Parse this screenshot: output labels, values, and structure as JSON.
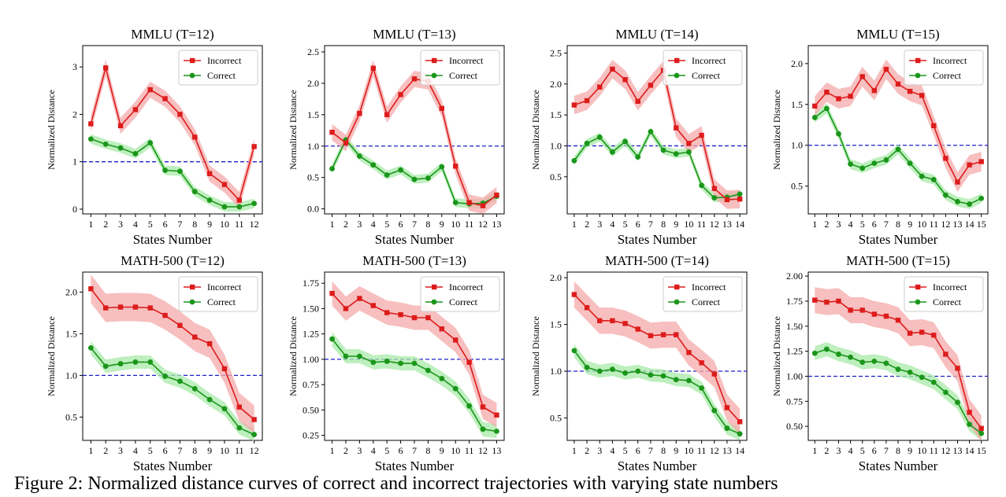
{
  "caption": "Figure 2: Normalized distance curves of correct and incorrect trajectories with varying state numbers",
  "colors": {
    "incorrect": "#dd1c1c",
    "incorrect_band": "#f4a9a9",
    "correct": "#1a961a",
    "correct_band": "#a8eaa8",
    "reference": "#1f1fc8"
  },
  "chart_data": [
    {
      "type": "line",
      "title": "MMLU (T=12)",
      "xlabel": "States Number",
      "ylabel": "Normalized Distance",
      "x": [
        1,
        2,
        3,
        4,
        5,
        6,
        7,
        8,
        9,
        10,
        11,
        12
      ],
      "ylim": [
        -0.1,
        3.45
      ],
      "yticks": [
        "0",
        "1",
        "2",
        "3"
      ],
      "reference_line": 1.0,
      "legend": "top-right",
      "series": [
        {
          "name": "Incorrect",
          "values": [
            1.8,
            2.98,
            1.76,
            2.1,
            2.52,
            2.33,
            2.0,
            1.52,
            0.75,
            0.52,
            0.19,
            1.32
          ],
          "band": 0.17
        },
        {
          "name": "Correct",
          "values": [
            1.48,
            1.37,
            1.29,
            1.17,
            1.4,
            0.82,
            0.8,
            0.37,
            0.19,
            0.05,
            0.05,
            0.12
          ],
          "band": 0.1
        }
      ]
    },
    {
      "type": "line",
      "title": "MMLU (T=13)",
      "xlabel": "States Number",
      "ylabel": "Normalized Distance",
      "x": [
        1,
        2,
        3,
        4,
        5,
        6,
        7,
        8,
        9,
        10,
        11,
        12,
        13
      ],
      "ylim": [
        -0.08,
        2.6
      ],
      "yticks": [
        "0.0",
        "0.5",
        "1.0",
        "1.5",
        "2.0",
        "2.5"
      ],
      "reference_line": 1.0,
      "legend": "top-right",
      "series": [
        {
          "name": "Incorrect",
          "values": [
            1.22,
            1.05,
            1.52,
            2.24,
            1.5,
            1.82,
            2.07,
            2.03,
            1.6,
            0.68,
            0.1,
            0.05,
            0.22
          ],
          "band": 0.13
        },
        {
          "name": "Correct",
          "values": [
            0.64,
            1.1,
            0.84,
            0.7,
            0.54,
            0.62,
            0.47,
            0.49,
            0.67,
            0.1,
            0.08,
            0.09,
            0.2
          ],
          "band": 0.07
        }
      ]
    },
    {
      "type": "line",
      "title": "MMLU (T=14)",
      "xlabel": "States Number",
      "ylabel": "Normalized Distance",
      "x": [
        1,
        2,
        3,
        4,
        5,
        6,
        7,
        8,
        9,
        10,
        11,
        12,
        13,
        14
      ],
      "ylim": [
        -0.1,
        2.62
      ],
      "yticks": [
        "0.5",
        "1.0",
        "1.5",
        "2.0",
        "2.5"
      ],
      "reference_line": 1.0,
      "legend": "top-right",
      "series": [
        {
          "name": "Incorrect",
          "values": [
            1.66,
            1.73,
            1.95,
            2.24,
            2.07,
            1.72,
            1.98,
            2.22,
            1.29,
            1.04,
            1.17,
            0.31,
            0.13,
            0.14
          ],
          "band": 0.15
        },
        {
          "name": "Correct",
          "values": [
            0.76,
            1.04,
            1.14,
            0.9,
            1.07,
            0.82,
            1.23,
            0.93,
            0.87,
            0.9,
            0.36,
            0.16,
            0.17,
            0.22
          ],
          "band": 0.07
        }
      ]
    },
    {
      "type": "line",
      "title": "MMLU (T=15)",
      "xlabel": "States Number",
      "ylabel": "Normalized Distance",
      "x": [
        1,
        2,
        3,
        4,
        5,
        6,
        7,
        8,
        9,
        10,
        11,
        12,
        13,
        14,
        15
      ],
      "ylim": [
        0.16,
        2.22
      ],
      "yticks": [
        "0.5",
        "1.0",
        "1.5",
        "2.0"
      ],
      "reference_line": 1.0,
      "legend": "top-right",
      "series": [
        {
          "name": "Incorrect",
          "values": [
            1.48,
            1.65,
            1.57,
            1.6,
            1.84,
            1.67,
            1.93,
            1.75,
            1.66,
            1.61,
            1.24,
            0.84,
            0.55,
            0.76,
            0.8
          ],
          "band": 0.12
        },
        {
          "name": "Correct",
          "values": [
            1.34,
            1.45,
            1.14,
            0.77,
            0.72,
            0.78,
            0.82,
            0.95,
            0.78,
            0.62,
            0.58,
            0.39,
            0.31,
            0.28,
            0.35
          ],
          "band": 0.06
        }
      ]
    },
    {
      "type": "line",
      "title": "MATH-500 (T=12)",
      "xlabel": "States Number",
      "ylabel": "Normalized Distance",
      "x": [
        1,
        2,
        3,
        4,
        5,
        6,
        7,
        8,
        9,
        10,
        11,
        12
      ],
      "ylim": [
        0.22,
        2.24
      ],
      "yticks": [
        "0.5",
        "1.0",
        "1.5",
        "2.0"
      ],
      "reference_line": 1.0,
      "legend": "top-right",
      "series": [
        {
          "name": "Incorrect",
          "values": [
            2.04,
            1.81,
            1.82,
            1.82,
            1.81,
            1.72,
            1.6,
            1.46,
            1.38,
            1.08,
            0.62,
            0.47
          ],
          "band": 0.17
        },
        {
          "name": "Correct",
          "values": [
            1.33,
            1.11,
            1.14,
            1.16,
            1.16,
            0.99,
            0.93,
            0.84,
            0.71,
            0.6,
            0.37,
            0.29
          ],
          "band": 0.08
        }
      ]
    },
    {
      "type": "line",
      "title": "MATH-500 (T=13)",
      "xlabel": "States Number",
      "ylabel": "Normalized Distance",
      "x": [
        1,
        2,
        3,
        4,
        5,
        6,
        7,
        8,
        9,
        10,
        11,
        12,
        13
      ],
      "ylim": [
        0.2,
        1.86
      ],
      "yticks": [
        "0.25",
        "0.50",
        "0.75",
        "1.00",
        "1.25",
        "1.50",
        "1.75"
      ],
      "reference_line": 1.0,
      "legend": "top-right",
      "series": [
        {
          "name": "Incorrect",
          "values": [
            1.65,
            1.5,
            1.6,
            1.53,
            1.46,
            1.44,
            1.41,
            1.41,
            1.3,
            1.19,
            0.97,
            0.53,
            0.45
          ],
          "band": 0.12
        },
        {
          "name": "Correct",
          "values": [
            1.2,
            1.03,
            1.03,
            0.97,
            0.98,
            0.96,
            0.96,
            0.89,
            0.81,
            0.71,
            0.54,
            0.31,
            0.29
          ],
          "band": 0.07
        }
      ]
    },
    {
      "type": "line",
      "title": "MATH-500 (T=14)",
      "xlabel": "States Number",
      "ylabel": "Normalized Distance",
      "x": [
        1,
        2,
        3,
        4,
        5,
        6,
        7,
        8,
        9,
        10,
        11,
        12,
        13,
        14
      ],
      "ylim": [
        0.26,
        2.06
      ],
      "yticks": [
        "0.5",
        "1.0",
        "1.5",
        "2.0"
      ],
      "reference_line": 1.0,
      "legend": "top-right",
      "series": [
        {
          "name": "Incorrect",
          "values": [
            1.82,
            1.68,
            1.54,
            1.54,
            1.51,
            1.45,
            1.38,
            1.39,
            1.39,
            1.2,
            1.09,
            0.97,
            0.61,
            0.46
          ],
          "band": 0.14
        },
        {
          "name": "Correct",
          "values": [
            1.22,
            1.04,
            1.0,
            1.02,
            0.98,
            1.0,
            0.96,
            0.95,
            0.91,
            0.9,
            0.82,
            0.58,
            0.39,
            0.33
          ],
          "band": 0.07
        }
      ]
    },
    {
      "type": "line",
      "title": "MATH-500 (T=15)",
      "xlabel": "States Number",
      "ylabel": "Normalized Distance",
      "x": [
        1,
        2,
        3,
        4,
        5,
        6,
        7,
        8,
        9,
        10,
        11,
        12,
        13,
        14,
        15
      ],
      "ylim": [
        0.36,
        2.04
      ],
      "yticks": [
        "0.50",
        "0.75",
        "1.00",
        "1.25",
        "1.50",
        "1.75",
        "2.00"
      ],
      "reference_line": 1.0,
      "legend": "top-right",
      "series": [
        {
          "name": "Incorrect",
          "values": [
            1.76,
            1.74,
            1.75,
            1.66,
            1.66,
            1.62,
            1.6,
            1.56,
            1.43,
            1.44,
            1.41,
            1.22,
            1.08,
            0.64,
            0.48
          ],
          "band": 0.13
        },
        {
          "name": "Correct",
          "values": [
            1.23,
            1.27,
            1.22,
            1.19,
            1.14,
            1.15,
            1.13,
            1.07,
            1.04,
            0.99,
            0.94,
            0.84,
            0.74,
            0.52,
            0.43
          ],
          "band": 0.07
        }
      ]
    }
  ]
}
